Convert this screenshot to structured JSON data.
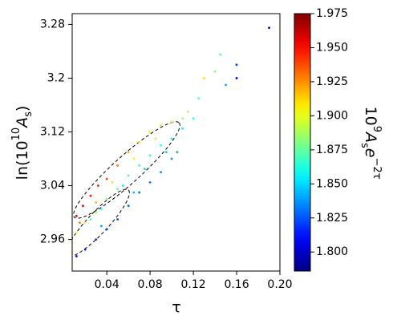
{
  "chart_data": {
    "type": "scatter",
    "xlabel": "τ",
    "ylabel": [
      {
        "text": "ln(10"
      },
      {
        "text": "10",
        "sup": true
      },
      {
        "text": "A"
      },
      {
        "text": "s",
        "sub": true
      },
      {
        "text": ")"
      }
    ],
    "colorbar_label": [
      {
        "text": "10"
      },
      {
        "text": "9",
        "sup": true
      },
      {
        "text": "A"
      },
      {
        "text": "s",
        "sub": true
      },
      {
        "text": "e"
      },
      {
        "text": "−2τ",
        "sup": true
      }
    ],
    "colormap": "jet",
    "xlim": [
      0.008,
      0.2
    ],
    "xticks": [
      0.04,
      0.08,
      0.12,
      0.16,
      {
        "value": 0.2,
        "label": "0.20"
      }
    ],
    "ylim": [
      2.913,
      3.296
    ],
    "yticks": [
      2.96,
      3.04,
      3.12,
      3.2,
      3.28
    ],
    "clim": [
      1.786,
      1.975
    ],
    "cticks": [
      {
        "value": 1.8,
        "label": "1.800"
      },
      1.825,
      {
        "value": 1.85,
        "label": "1.850"
      },
      1.875,
      {
        "value": 1.9,
        "label": "1.900"
      },
      1.925,
      {
        "value": 1.95,
        "label": "1.950"
      },
      1.975
    ],
    "x": [
      0.012,
      0.018,
      0.025,
      0.032,
      0.04,
      0.05,
      0.06,
      0.07,
      0.08,
      0.09,
      0.1,
      0.11,
      0.012,
      0.02,
      0.03,
      0.04,
      0.05,
      0.06,
      0.07,
      0.08,
      0.09,
      0.1,
      0.11,
      0.12,
      0.012,
      0.02,
      0.03,
      0.04,
      0.05,
      0.06,
      0.07,
      0.08,
      0.09,
      0.1,
      0.105,
      0.015,
      0.03,
      0.045,
      0.065,
      0.085,
      0.115,
      0.125,
      0.13,
      0.14,
      0.145,
      0.15,
      0.16,
      0.16,
      0.19,
      0.025,
      0.035,
      0.055,
      0.075,
      0.095,
      0.035,
      0.065
    ],
    "values": [
      2.995,
      3.01,
      3.025,
      3.04,
      3.05,
      3.07,
      3.09,
      3.105,
      3.12,
      3.13,
      3.135,
      3.14,
      2.97,
      2.985,
      3.0,
      3.02,
      3.035,
      3.055,
      3.07,
      3.085,
      3.1,
      3.11,
      3.125,
      3.14,
      2.935,
      2.945,
      2.96,
      2.975,
      2.99,
      3.01,
      3.03,
      3.045,
      3.06,
      3.08,
      3.09,
      2.985,
      3.015,
      3.045,
      3.08,
      3.11,
      3.15,
      3.17,
      3.2,
      3.21,
      3.235,
      3.19,
      3.22,
      3.2,
      3.275,
      2.99,
      3.005,
      3.04,
      3.065,
      3.09,
      2.98,
      3.03
    ],
    "color_values": [
      1.96,
      1.955,
      1.95,
      1.945,
      1.94,
      1.93,
      1.92,
      1.91,
      1.905,
      1.895,
      1.89,
      1.885,
      1.9,
      1.895,
      1.885,
      1.88,
      1.875,
      1.87,
      1.868,
      1.865,
      1.86,
      1.857,
      1.855,
      1.86,
      1.81,
      1.815,
      1.82,
      1.822,
      1.825,
      1.828,
      1.83,
      1.832,
      1.835,
      1.838,
      1.84,
      1.93,
      1.915,
      1.91,
      1.9,
      1.89,
      1.885,
      1.87,
      1.91,
      1.88,
      1.87,
      1.84,
      1.82,
      1.81,
      1.79,
      1.87,
      1.86,
      1.855,
      1.85,
      1.848,
      1.84,
      1.845
    ]
  }
}
